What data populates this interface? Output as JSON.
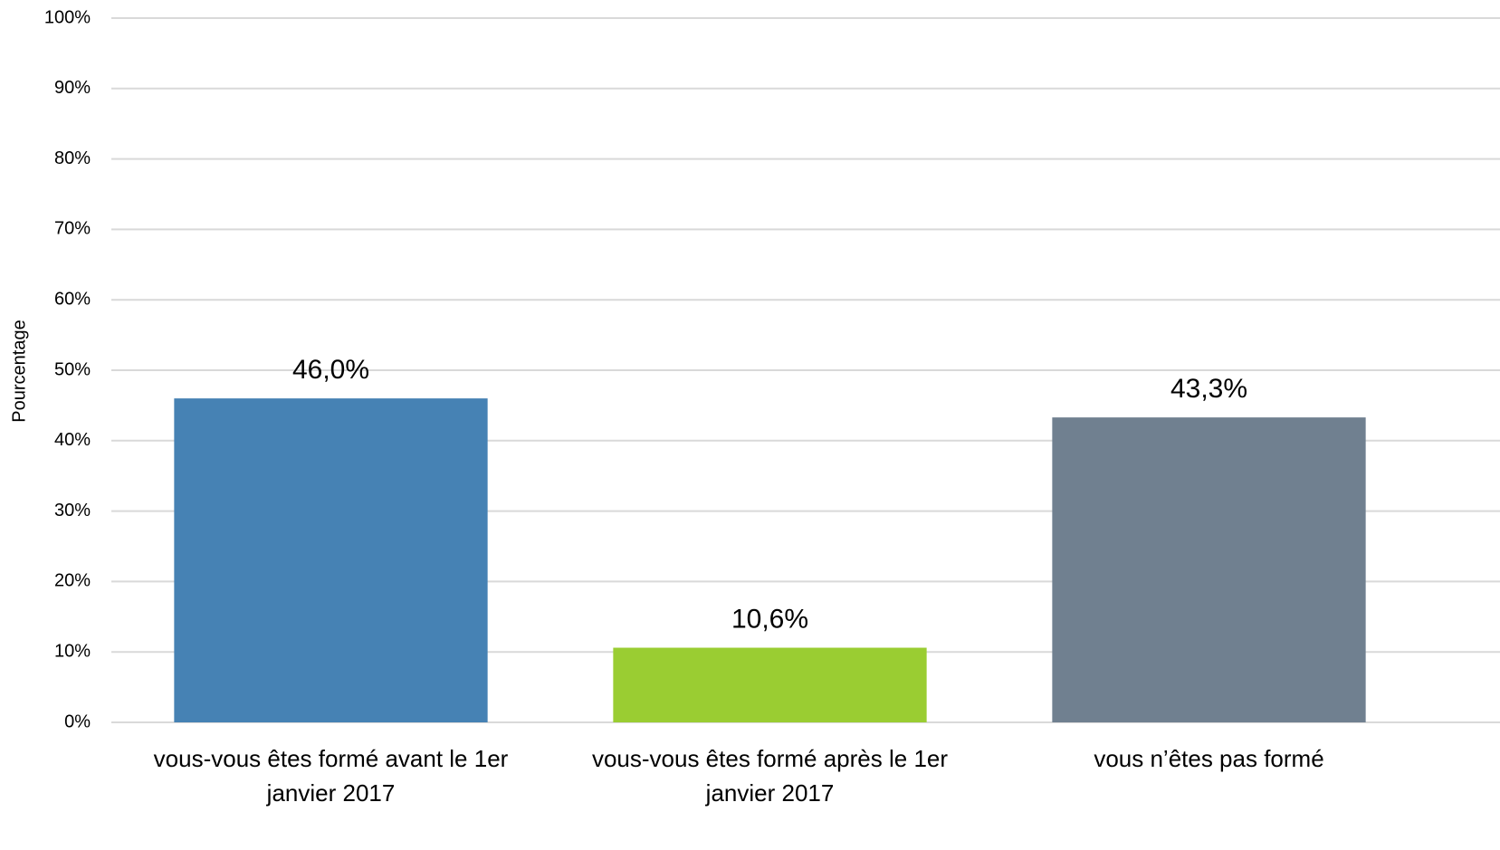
{
  "chart_data": {
    "type": "bar",
    "y_label": "Pourcentage",
    "categories": [
      "vous-vous êtes formé avant le 1er janvier 2017",
      "vous-vous êtes formé après le 1er janvier 2017",
      "vous n’êtes pas formé"
    ],
    "values": [
      46.0,
      10.6,
      43.3
    ],
    "value_labels": [
      "46,0%",
      "10,6%",
      "43,3%"
    ],
    "colors": [
      "#4682b4",
      "#9acd32",
      "#708090"
    ],
    "ylim": [
      0,
      100
    ],
    "yticks": [
      {
        "value": 0,
        "label": "0%"
      },
      {
        "value": 10,
        "label": "10%"
      },
      {
        "value": 20,
        "label": "20%"
      },
      {
        "value": 30,
        "label": "30%"
      },
      {
        "value": 40,
        "label": "40%"
      },
      {
        "value": 50,
        "label": "50%"
      },
      {
        "value": 60,
        "label": "60%"
      },
      {
        "value": 70,
        "label": "70%"
      },
      {
        "value": 80,
        "label": "80%"
      },
      {
        "value": 90,
        "label": "90%"
      },
      {
        "value": 100,
        "label": "100%"
      }
    ],
    "grid": true
  }
}
